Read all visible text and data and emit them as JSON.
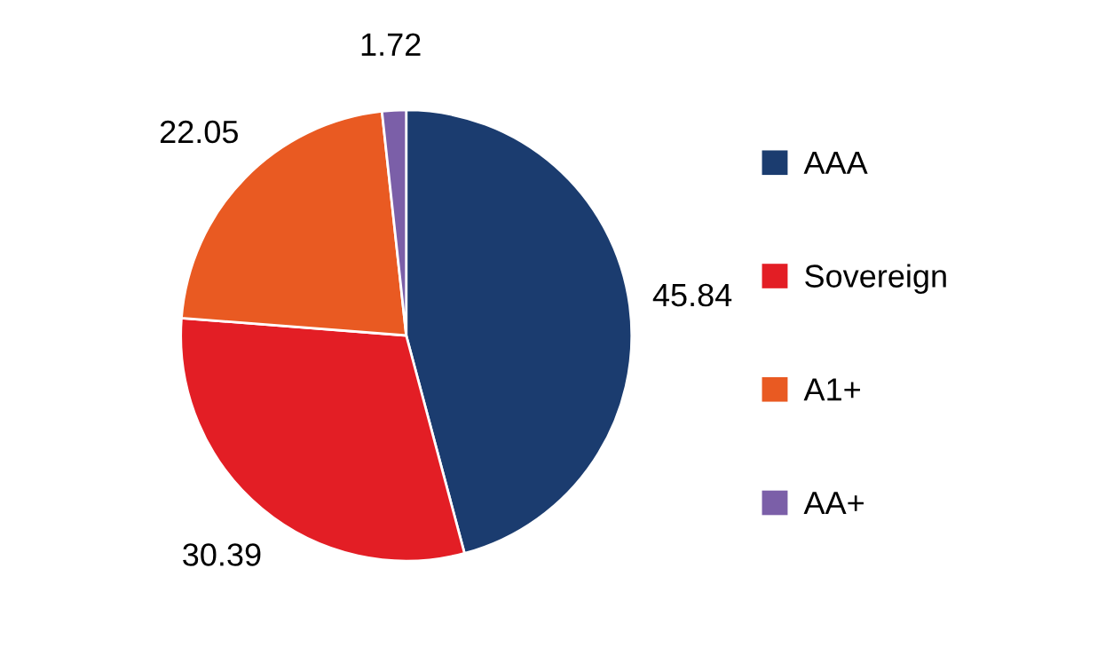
{
  "chart_data": {
    "type": "pie",
    "categories": [
      "AAA",
      "Sovereign",
      "A1+",
      "AA+"
    ],
    "values": [
      45.84,
      30.39,
      22.05,
      1.72
    ],
    "colors": [
      "#1b3c6f",
      "#e31e25",
      "#e95a22",
      "#7b5fa8"
    ],
    "data_labels": true,
    "legend": "right"
  }
}
